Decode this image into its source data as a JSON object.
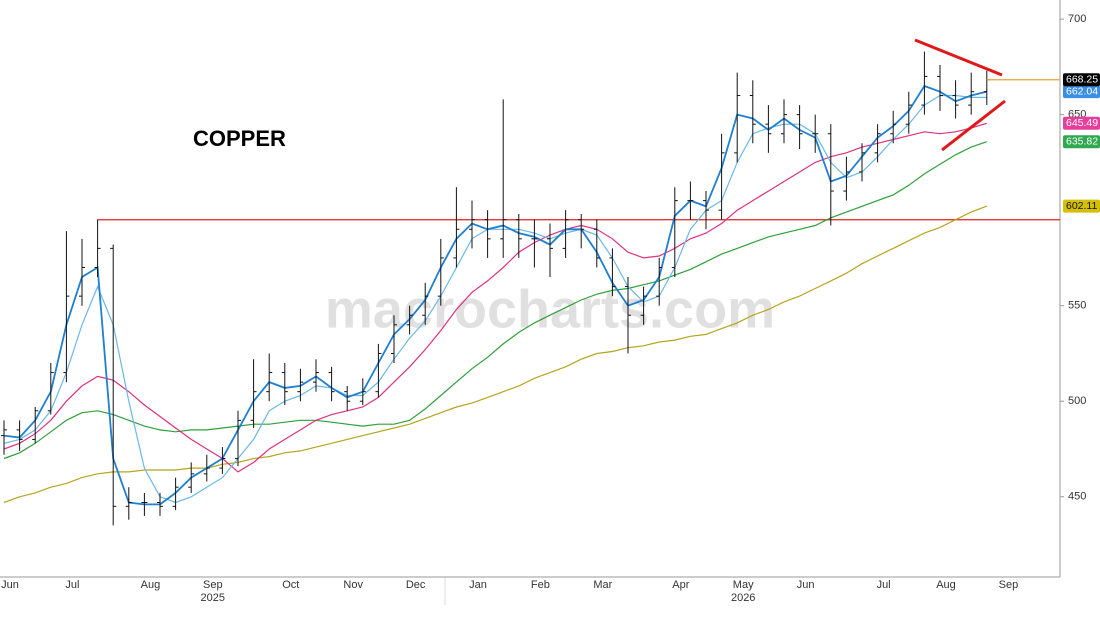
{
  "chart_data": {
    "type": "ohlc",
    "title": "COPPER",
    "watermark": "macrocharts.com",
    "categories": [
      "Jun",
      null,
      null,
      null,
      "Jul",
      null,
      null,
      null,
      null,
      "Aug",
      null,
      null,
      null,
      "Sep",
      null,
      null,
      null,
      null,
      "Oct",
      null,
      null,
      null,
      "Nov",
      null,
      null,
      null,
      "Dec",
      null,
      null,
      null,
      "Jan",
      null,
      null,
      null,
      "Feb",
      null,
      null,
      null,
      "Mar",
      null,
      null,
      null,
      null,
      "Apr",
      null,
      null,
      null,
      "May",
      null,
      null,
      null,
      "Jun",
      null,
      null,
      null,
      null,
      "Jul",
      null,
      null,
      null,
      "Aug",
      null,
      null,
      null,
      "Sep",
      null,
      null,
      null
    ],
    "year_labels": [
      {
        "label": "2025",
        "category": 13
      },
      {
        "label": "2026",
        "category": 47
      }
    ],
    "price": {
      "color": "#111111",
      "last_color": "#e8a33c",
      "open": [
        482,
        485,
        480,
        495,
        515,
        555,
        570,
        580,
        445,
        447,
        447,
        445,
        455,
        462,
        465,
        470,
        490,
        505,
        515,
        505,
        510,
        515,
        505,
        500,
        505,
        525,
        540,
        545,
        555,
        575,
        590,
        595,
        585,
        595,
        585,
        585,
        580,
        595,
        590,
        575,
        560,
        545,
        555,
        570,
        605,
        605,
        600,
        630,
        660,
        645,
        640,
        650,
        640,
        640,
        610,
        620,
        630,
        640,
        645,
        655,
        670,
        660,
        655,
        662,
        null,
        null,
        null,
        null
      ],
      "high": [
        490,
        490,
        497,
        520,
        589,
        585,
        595,
        582,
        455,
        452,
        452,
        460,
        468,
        472,
        476,
        495,
        522,
        525,
        520,
        517,
        522,
        518,
        508,
        512,
        530,
        545,
        550,
        562,
        585,
        612,
        605,
        600,
        658,
        598,
        595,
        593,
        600,
        598,
        595,
        580,
        565,
        560,
        575,
        612,
        615,
        610,
        640,
        672,
        668,
        655,
        658,
        655,
        650,
        645,
        628,
        635,
        645,
        652,
        662,
        683,
        676,
        668,
        672,
        673,
        null,
        null,
        null,
        null
      ],
      "low": [
        472,
        474,
        478,
        493,
        510,
        550,
        565,
        435,
        438,
        440,
        440,
        443,
        452,
        458,
        462,
        466,
        486,
        500,
        498,
        500,
        505,
        500,
        495,
        498,
        502,
        520,
        535,
        540,
        550,
        570,
        580,
        575,
        575,
        575,
        570,
        565,
        575,
        580,
        570,
        555,
        525,
        540,
        550,
        565,
        595,
        590,
        595,
        625,
        635,
        630,
        635,
        632,
        630,
        592,
        605,
        615,
        625,
        635,
        640,
        650,
        652,
        648,
        650,
        655,
        null,
        null,
        null,
        null
      ],
      "close": [
        485,
        480,
        495,
        515,
        555,
        570,
        580,
        445,
        447,
        447,
        445,
        455,
        462,
        465,
        470,
        490,
        505,
        515,
        505,
        510,
        515,
        505,
        500,
        505,
        525,
        540,
        545,
        555,
        575,
        590,
        595,
        585,
        595,
        585,
        585,
        580,
        595,
        590,
        575,
        560,
        545,
        555,
        570,
        605,
        605,
        600,
        630,
        660,
        645,
        640,
        650,
        640,
        640,
        610,
        620,
        630,
        640,
        645,
        655,
        670,
        660,
        655,
        662,
        668.25,
        null,
        null,
        null,
        null
      ]
    },
    "series": [
      {
        "color": "#b8a41e",
        "label_color": "#d4c000",
        "label_text": "#111111",
        "values": [
          447,
          450,
          452,
          455,
          457,
          460,
          462,
          463,
          463,
          464,
          464,
          464,
          465,
          465,
          467,
          468,
          470,
          471,
          473,
          474,
          476,
          478,
          480,
          482,
          484,
          486,
          488,
          491,
          494,
          497,
          499,
          502,
          505,
          508,
          512,
          515,
          518,
          522,
          525,
          526,
          528,
          529,
          531,
          532,
          534,
          535,
          538,
          541,
          545,
          548,
          552,
          555,
          559,
          563,
          567,
          572,
          576,
          580,
          584,
          588,
          591,
          595,
          599,
          602.11,
          null,
          null,
          null,
          null
        ]
      },
      {
        "color": "#2ea03a",
        "label_color": "#2fa84f",
        "label_text": "#ffffff",
        "values": [
          470,
          473,
          478,
          484,
          490,
          494,
          495,
          493,
          490,
          487,
          485,
          484,
          485,
          485,
          486,
          487,
          488,
          488,
          489,
          490,
          490,
          489,
          488,
          487,
          488,
          488,
          490,
          496,
          503,
          510,
          517,
          523,
          530,
          536,
          541,
          545,
          549,
          553,
          556,
          558,
          559,
          561,
          563,
          566,
          569,
          573,
          577,
          580,
          583,
          586,
          588,
          590,
          592,
          596,
          599,
          602,
          605,
          608,
          613,
          619,
          624,
          629,
          633,
          635.82,
          null,
          null,
          null,
          null
        ]
      },
      {
        "color": "#e0307e",
        "label_color": "#e83e9b",
        "label_text": "#ffffff",
        "values": [
          475,
          478,
          483,
          490,
          500,
          508,
          513,
          511,
          505,
          498,
          492,
          486,
          480,
          475,
          470,
          463,
          468,
          475,
          480,
          485,
          490,
          493,
          495,
          497,
          502,
          510,
          518,
          527,
          537,
          548,
          557,
          563,
          570,
          578,
          583,
          587,
          590,
          592,
          590,
          585,
          578,
          575,
          576,
          580,
          585,
          588,
          593,
          600,
          605,
          610,
          615,
          620,
          625,
          628,
          630,
          633,
          635,
          637,
          639,
          641,
          640,
          641,
          643,
          645.49,
          null,
          null,
          null,
          null
        ]
      },
      {
        "color": "#6ab8e8",
        "values": [
          478,
          480,
          485,
          495,
          515,
          540,
          560,
          540,
          500,
          465,
          450,
          447,
          450,
          455,
          460,
          470,
          480,
          495,
          500,
          503,
          508,
          507,
          503,
          503,
          510,
          522,
          533,
          542,
          555,
          570,
          585,
          590,
          590,
          590,
          588,
          585,
          588,
          590,
          587,
          575,
          560,
          552,
          555,
          570,
          590,
          600,
          605,
          625,
          640,
          643,
          645,
          645,
          640,
          625,
          617,
          620,
          628,
          637,
          645,
          655,
          660,
          660,
          659,
          659,
          null,
          null,
          null,
          null
        ]
      },
      {
        "color": "#1f7fd0",
        "label_color": "#3a8ee6",
        "label_text": "#ffffff",
        "values": [
          482,
          481,
          490,
          505,
          540,
          565,
          570,
          470,
          447,
          446,
          446,
          452,
          460,
          465,
          470,
          485,
          500,
          510,
          507,
          508,
          513,
          507,
          502,
          505,
          520,
          535,
          543,
          553,
          570,
          585,
          593,
          590,
          592,
          588,
          586,
          582,
          590,
          590,
          578,
          562,
          550,
          553,
          565,
          597,
          605,
          602,
          622,
          650,
          648,
          642,
          648,
          642,
          638,
          615,
          618,
          628,
          638,
          644,
          652,
          665,
          662,
          657,
          660,
          662.04,
          null,
          null,
          null,
          null
        ]
      }
    ],
    "reference_line": {
      "value": 595,
      "start_category": 6,
      "color": "#e02020"
    },
    "ylim": [
      408,
      710
    ],
    "yticks": [
      450,
      500,
      550,
      650,
      700
    ]
  }
}
